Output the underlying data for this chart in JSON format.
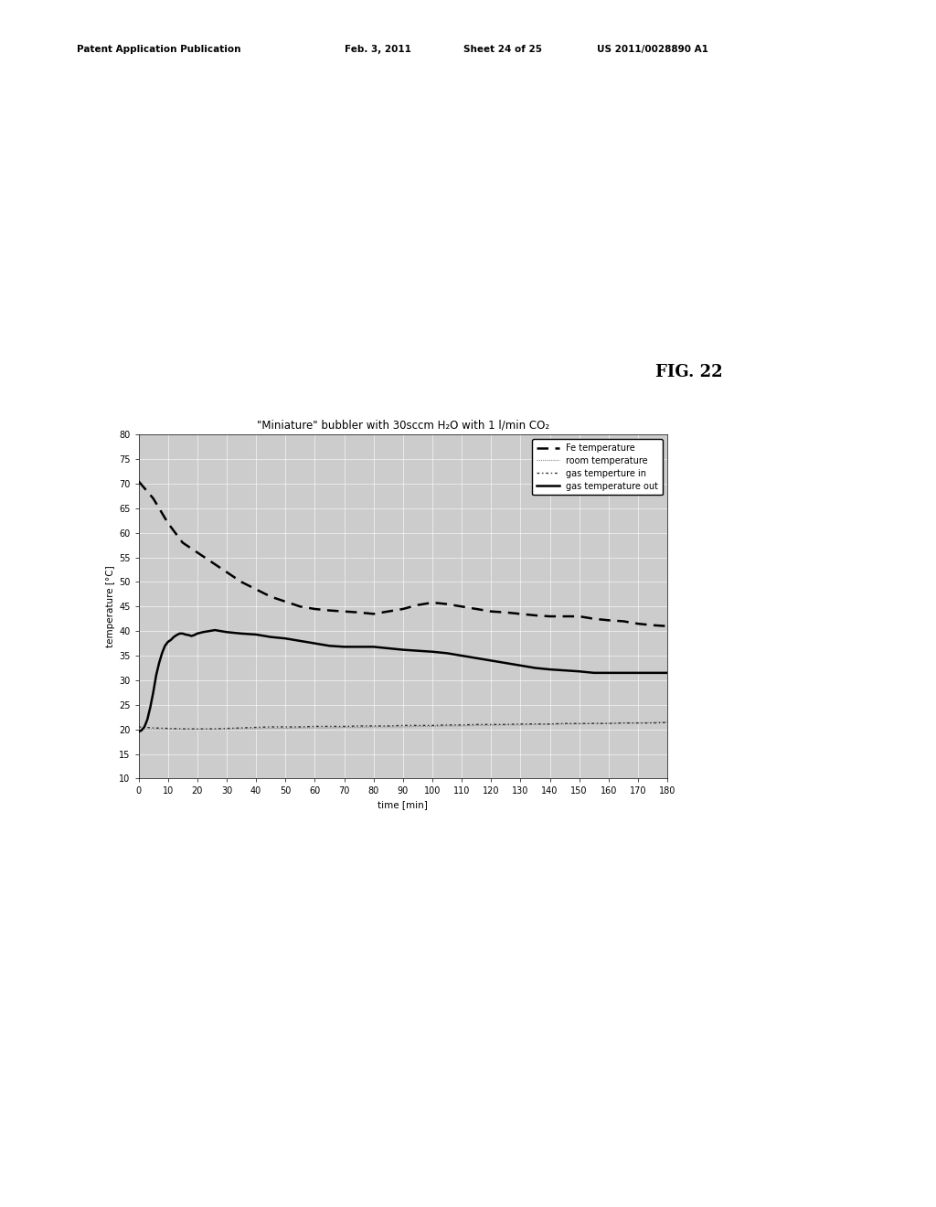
{
  "title": "\"Miniature\" bubbler with 30sccm H₂O with 1 l/min CO₂",
  "xlabel": "time [min]",
  "ylabel": "temperature [°C]",
  "xlim": [
    0,
    180
  ],
  "ylim": [
    10,
    80
  ],
  "xticks": [
    0,
    10,
    20,
    30,
    40,
    50,
    60,
    70,
    80,
    90,
    100,
    110,
    120,
    130,
    140,
    150,
    160,
    170,
    180
  ],
  "yticks": [
    10,
    15,
    20,
    25,
    30,
    35,
    40,
    45,
    50,
    55,
    60,
    65,
    70,
    75,
    80
  ],
  "background_color": "#ffffff",
  "plot_bg_color": "#cccccc",
  "grid_color": "#ffffff",
  "series": {
    "fe_temperature": {
      "label": "Fe temperature",
      "color": "#000000",
      "linewidth": 1.8,
      "x": [
        0,
        5,
        10,
        15,
        20,
        25,
        30,
        35,
        40,
        45,
        50,
        55,
        60,
        65,
        70,
        75,
        80,
        85,
        90,
        95,
        100,
        105,
        110,
        115,
        120,
        125,
        130,
        135,
        140,
        145,
        150,
        155,
        160,
        165,
        170,
        175,
        180
      ],
      "y": [
        70.5,
        67,
        62,
        58,
        56,
        54,
        52,
        50,
        48.5,
        47,
        46,
        45,
        44.5,
        44.2,
        44.0,
        43.8,
        43.5,
        44.0,
        44.5,
        45.3,
        45.8,
        45.5,
        45.0,
        44.5,
        44.0,
        43.8,
        43.5,
        43.2,
        43.0,
        43.0,
        43.0,
        42.5,
        42.2,
        42.0,
        41.5,
        41.2,
        41.0
      ]
    },
    "room_temperature": {
      "label": "room temperature",
      "color": "#888888",
      "linewidth": 0.8,
      "x": [
        0,
        5,
        10,
        15,
        20,
        25,
        30,
        35,
        40,
        45,
        50,
        55,
        60,
        65,
        70,
        75,
        80,
        85,
        90,
        95,
        100,
        105,
        110,
        115,
        120,
        125,
        130,
        135,
        140,
        145,
        150,
        155,
        160,
        165,
        170,
        175,
        180
      ],
      "y": [
        20.0,
        20.0,
        20.0,
        20.0,
        20.0,
        20.0,
        20.0,
        20.1,
        20.1,
        20.2,
        20.2,
        20.3,
        20.3,
        20.3,
        20.4,
        20.4,
        20.5,
        20.5,
        20.5,
        20.6,
        20.6,
        20.7,
        20.7,
        20.8,
        20.8,
        20.9,
        20.9,
        21.0,
        21.0,
        21.1,
        21.1,
        21.2,
        21.2,
        21.3,
        21.3,
        21.4,
        21.5
      ]
    },
    "gas_temp_in": {
      "label": "gas temperture in",
      "color": "#333333",
      "linewidth": 1.0,
      "x": [
        0,
        5,
        10,
        15,
        20,
        25,
        30,
        35,
        40,
        45,
        50,
        55,
        60,
        65,
        70,
        75,
        80,
        85,
        90,
        95,
        100,
        105,
        110,
        115,
        120,
        125,
        130,
        135,
        140,
        145,
        150,
        155,
        160,
        165,
        170,
        175,
        180
      ],
      "y": [
        20.5,
        20.3,
        20.2,
        20.1,
        20.1,
        20.1,
        20.2,
        20.3,
        20.4,
        20.5,
        20.5,
        20.5,
        20.6,
        20.6,
        20.6,
        20.7,
        20.7,
        20.7,
        20.8,
        20.8,
        20.8,
        20.9,
        20.9,
        21.0,
        21.0,
        21.0,
        21.1,
        21.1,
        21.1,
        21.2,
        21.2,
        21.2,
        21.2,
        21.3,
        21.3,
        21.3,
        21.4
      ]
    },
    "gas_temp_out": {
      "label": "gas temperature out",
      "color": "#000000",
      "linewidth": 1.8,
      "x": [
        0,
        1,
        2,
        3,
        4,
        5,
        6,
        7,
        8,
        9,
        10,
        11,
        12,
        13,
        14,
        15,
        16,
        17,
        18,
        19,
        20,
        22,
        24,
        26,
        28,
        30,
        35,
        40,
        45,
        50,
        55,
        60,
        65,
        70,
        75,
        80,
        85,
        90,
        95,
        100,
        105,
        110,
        115,
        120,
        125,
        130,
        135,
        140,
        145,
        150,
        155,
        160,
        165,
        170,
        175,
        180
      ],
      "y": [
        19.5,
        19.8,
        20.5,
        22.0,
        24.5,
        27.5,
        31.0,
        33.5,
        35.5,
        37.0,
        37.8,
        38.2,
        38.8,
        39.2,
        39.5,
        39.5,
        39.3,
        39.2,
        39.0,
        39.2,
        39.5,
        39.8,
        40.0,
        40.2,
        40.0,
        39.8,
        39.5,
        39.3,
        38.8,
        38.5,
        38.0,
        37.5,
        37.0,
        36.8,
        36.8,
        36.8,
        36.5,
        36.2,
        36.0,
        35.8,
        35.5,
        35.0,
        34.5,
        34.0,
        33.5,
        33.0,
        32.5,
        32.2,
        32.0,
        31.8,
        31.5,
        31.5,
        31.5,
        31.5,
        31.5,
        31.5
      ]
    }
  },
  "fig_label": "FIG. 22",
  "title_fontsize": 8.5,
  "axis_fontsize": 7.5,
  "tick_fontsize": 7
}
